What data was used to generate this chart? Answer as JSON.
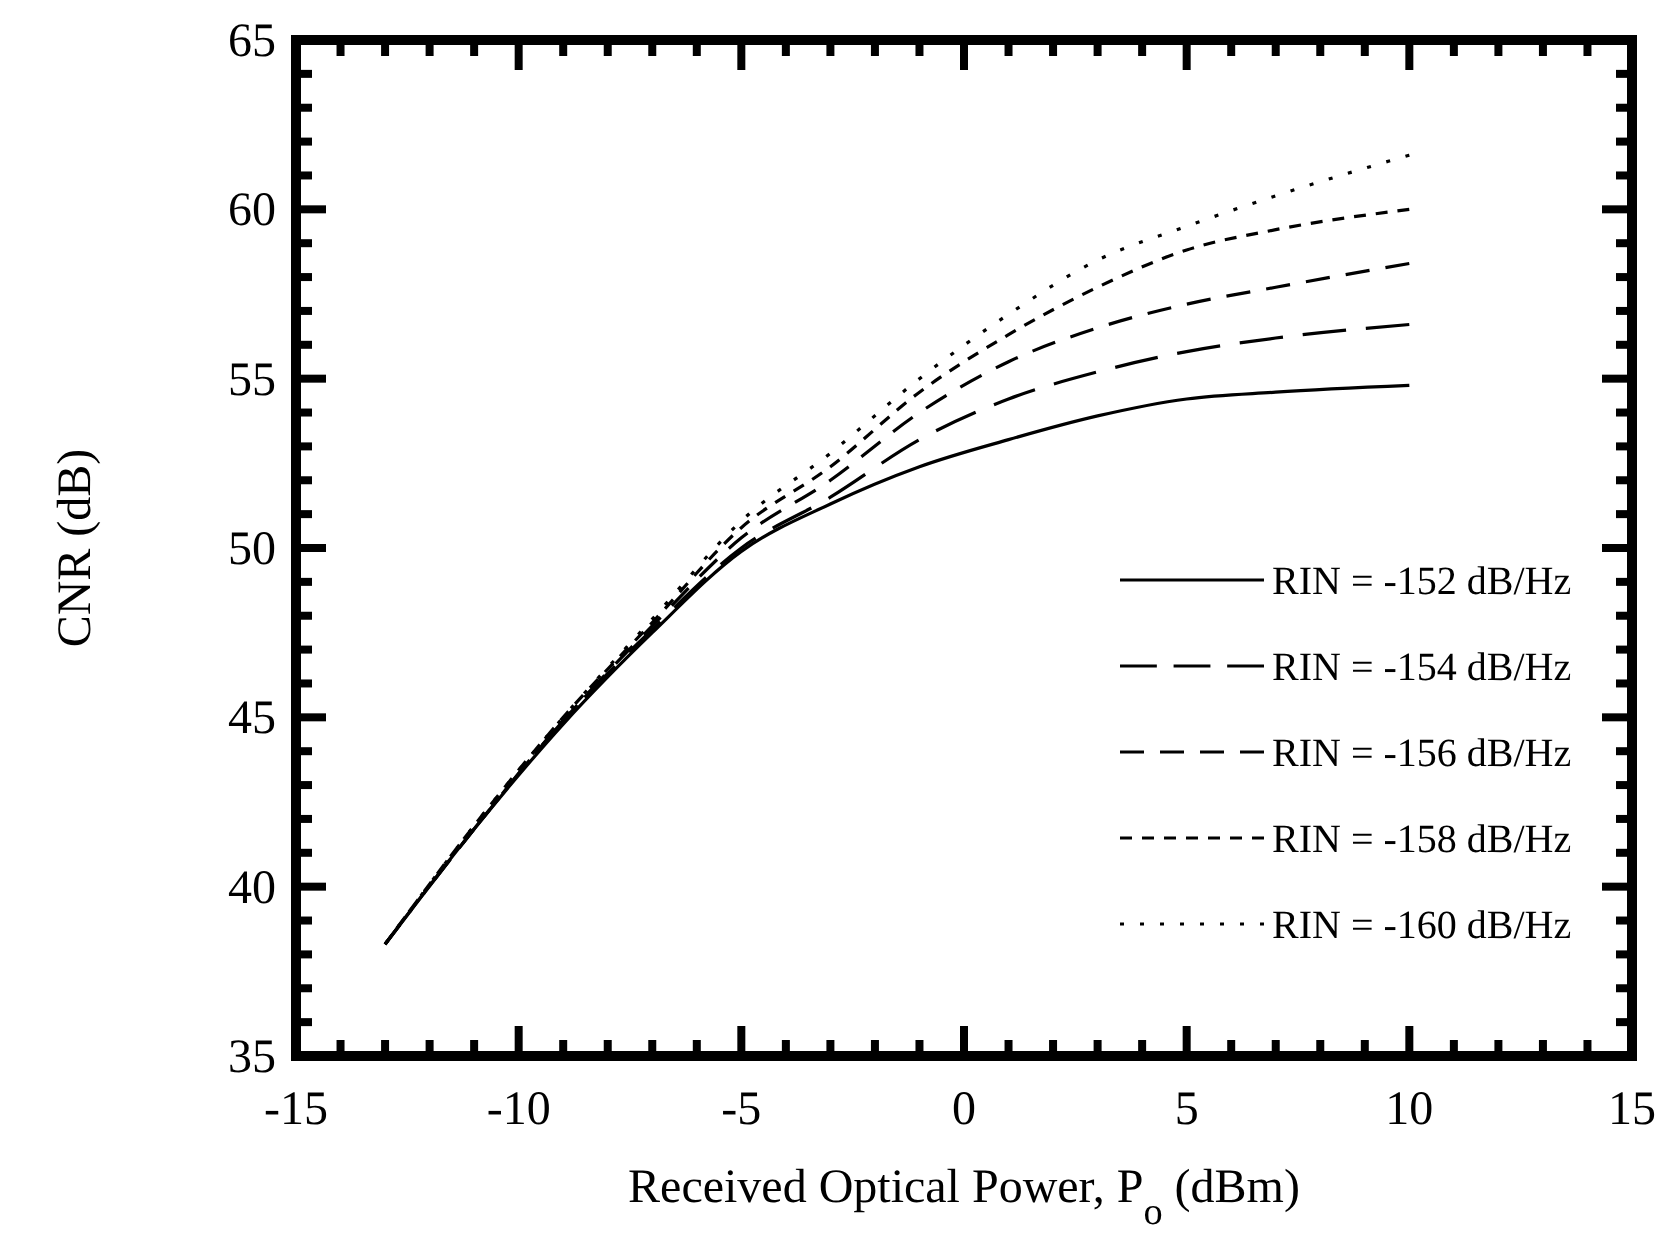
{
  "chart_data": {
    "type": "line",
    "xlabel": "Received Optical Power, P$_{o}$ (dBm)",
    "ylabel": "CNR  (dB)",
    "x": [
      -13,
      -11,
      -9,
      -7,
      -5,
      -3,
      -1,
      1,
      3,
      5,
      7,
      10
    ],
    "series": [
      {
        "name": "RIN = -152 dB/Hz",
        "color": "#000000",
        "line_style": "solid",
        "values": [
          38.3,
          41.7,
          44.8,
          47.5,
          49.9,
          51.3,
          52.4,
          53.2,
          53.9,
          54.4,
          54.6,
          54.8
        ]
      },
      {
        "name": "RIN = -154 dB/Hz",
        "color": "#000000",
        "line_style": "dashed",
        "values": [
          38.3,
          41.7,
          44.9,
          47.6,
          50.0,
          51.5,
          53.2,
          54.4,
          55.2,
          55.8,
          56.2,
          56.6
        ]
      },
      {
        "name": "RIN = -156 dB/Hz",
        "color": "#000000",
        "line_style": "dashed",
        "values": [
          38.3,
          41.7,
          44.9,
          47.7,
          50.3,
          52.0,
          54.0,
          55.5,
          56.5,
          57.2,
          57.7,
          58.4
        ]
      },
      {
        "name": "RIN = -158 dB/Hz",
        "color": "#000000",
        "line_style": "dashed",
        "values": [
          38.3,
          41.8,
          45.0,
          47.8,
          50.6,
          52.4,
          54.6,
          56.3,
          57.7,
          58.8,
          59.4,
          60.0
        ]
      },
      {
        "name": "RIN = -160 dB/Hz",
        "color": "#000000",
        "line_style": "dotted",
        "values": [
          38.3,
          41.8,
          45.0,
          47.9,
          50.8,
          52.8,
          55.0,
          56.9,
          58.5,
          59.5,
          60.4,
          61.6
        ]
      }
    ],
    "xlim": [
      -15,
      15
    ],
    "ylim": [
      35,
      65
    ],
    "xticks": [
      -15,
      {
        "value": -14,
        "label": null
      },
      {
        "value": -13,
        "label": null
      },
      {
        "value": -12,
        "label": null
      },
      {
        "value": -11,
        "label": null
      },
      -10,
      {
        "value": -9,
        "label": null
      },
      {
        "value": -8,
        "label": null
      },
      {
        "value": -7,
        "label": null
      },
      {
        "value": -6,
        "label": null
      },
      -5,
      {
        "value": -4,
        "label": null
      },
      {
        "value": -3,
        "label": null
      },
      {
        "value": -2,
        "label": null
      },
      {
        "value": -1,
        "label": null
      },
      0,
      {
        "value": 1,
        "label": null
      },
      {
        "value": 2,
        "label": null
      },
      {
        "value": 3,
        "label": null
      },
      {
        "value": 4,
        "label": null
      },
      5,
      {
        "value": 6,
        "label": null
      },
      {
        "value": 7,
        "label": null
      },
      {
        "value": 8,
        "label": null
      },
      {
        "value": 9,
        "label": null
      },
      10,
      {
        "value": 11,
        "label": null
      },
      {
        "value": 12,
        "label": null
      },
      {
        "value": 13,
        "label": null
      },
      {
        "value": 14,
        "label": null
      },
      15
    ],
    "yticks": [
      35,
      {
        "value": 36,
        "label": null
      },
      {
        "value": 37,
        "label": null
      },
      {
        "value": 38,
        "label": null
      },
      {
        "value": 39,
        "label": null
      },
      40,
      {
        "value": 41,
        "label": null
      },
      {
        "value": 42,
        "label": null
      },
      {
        "value": 43,
        "label": null
      },
      {
        "value": 44,
        "label": null
      },
      45,
      {
        "value": 46,
        "label": null
      },
      {
        "value": 47,
        "label": null
      },
      {
        "value": 48,
        "label": null
      },
      {
        "value": 49,
        "label": null
      },
      50,
      {
        "value": 51,
        "label": null
      },
      {
        "value": 52,
        "label": null
      },
      {
        "value": 53,
        "label": null
      },
      {
        "value": 54,
        "label": null
      },
      55,
      {
        "value": 56,
        "label": null
      },
      {
        "value": 57,
        "label": null
      },
      {
        "value": 58,
        "label": null
      },
      {
        "value": 59,
        "label": null
      },
      60,
      {
        "value": 61,
        "label": null
      },
      {
        "value": 62,
        "label": null
      },
      {
        "value": 63,
        "label": null
      },
      {
        "value": 64,
        "label": null
      },
      65
    ],
    "grid": false,
    "legend": "right",
    "marker": "none"
  }
}
